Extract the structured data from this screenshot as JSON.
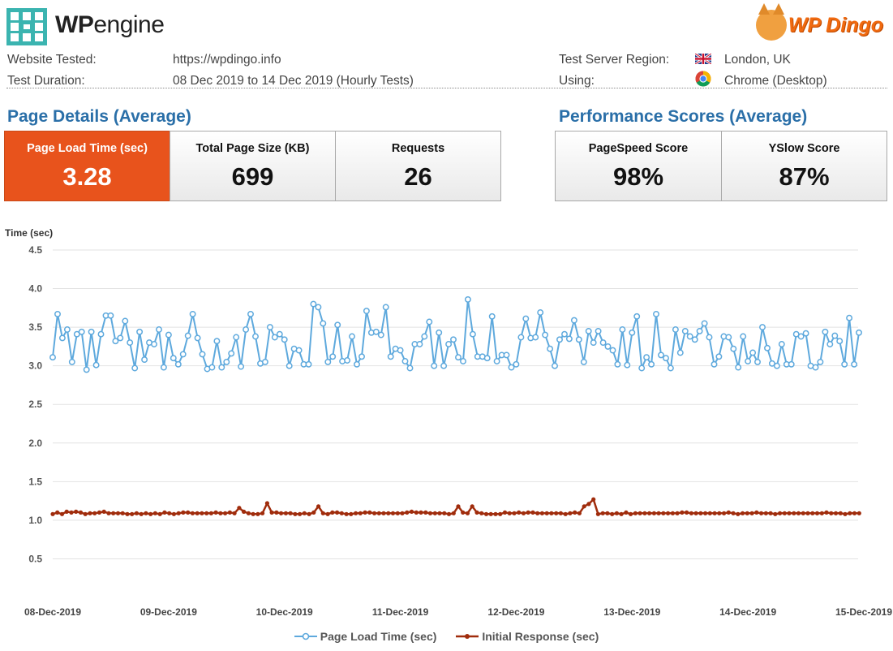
{
  "header": {
    "brand_left": "WP engine",
    "brand_left_bold": "WP",
    "brand_left_rest": "engine",
    "brand_right": "WP Dingo"
  },
  "info": {
    "website_label": "Website Tested:",
    "website_value": "https://wpdingo.info",
    "duration_label": "Test Duration:",
    "duration_value": "08 Dec 2019 to 14 Dec 2019 (Hourly Tests)",
    "region_label": "Test Server Region:",
    "region_value": "London, UK",
    "using_label": "Using:",
    "using_value": "Chrome (Desktop)"
  },
  "page_details": {
    "title": "Page Details (Average)",
    "metrics": [
      {
        "label": "Page Load Time (sec)",
        "value": "3.28"
      },
      {
        "label": "Total Page Size (KB)",
        "value": "699"
      },
      {
        "label": "Requests",
        "value": "26"
      }
    ]
  },
  "performance": {
    "title": "Performance Scores (Average)",
    "metrics": [
      {
        "label": "PageSpeed Score",
        "value": "98%"
      },
      {
        "label": "YSlow Score",
        "value": "87%"
      }
    ]
  },
  "colors": {
    "accent_orange": "#e8531c",
    "title_blue": "#2a6fa8",
    "series_load": "#5ea9dd",
    "series_response": "#a02c0c"
  },
  "chart_data": {
    "type": "line",
    "ylabel": "Time (sec)",
    "ylim": [
      0,
      4.5
    ],
    "yticks": [
      "4.5",
      "4.0",
      "3.5",
      "3.0",
      "2.5",
      "2.0",
      "1.5",
      "1.0",
      "0.5"
    ],
    "xlim": [
      0,
      7
    ],
    "x_unit": "days since 08-Dec-2019",
    "xticks": [
      "08-Dec-2019",
      "09-Dec-2019",
      "10-Dec-2019",
      "11-Dec-2019",
      "12-Dec-2019",
      "13-Dec-2019",
      "14-Dec-2019",
      "15-Dec-2019"
    ],
    "grid": true,
    "legend_position": "bottom",
    "series": [
      {
        "name": "Page Load Time (sec)",
        "color": "#5ea9dd",
        "values": [
          3.11,
          3.67,
          3.36,
          3.47,
          3.05,
          3.41,
          3.44,
          2.95,
          3.44,
          3.01,
          3.41,
          3.65,
          3.65,
          3.32,
          3.36,
          3.58,
          3.3,
          2.97,
          3.44,
          3.08,
          3.3,
          3.28,
          3.47,
          2.98,
          3.4,
          3.1,
          3.02,
          3.15,
          3.39,
          3.67,
          3.36,
          3.15,
          2.96,
          2.98,
          3.32,
          2.98,
          3.05,
          3.16,
          3.37,
          2.99,
          3.47,
          3.67,
          3.38,
          3.03,
          3.05,
          3.5,
          3.37,
          3.41,
          3.34,
          3.0,
          3.22,
          3.2,
          3.02,
          3.02,
          3.8,
          3.76,
          3.55,
          3.05,
          3.12,
          3.53,
          3.06,
          3.07,
          3.38,
          3.02,
          3.12,
          3.71,
          3.43,
          3.44,
          3.4,
          3.76,
          3.12,
          3.22,
          3.2,
          3.06,
          2.97,
          3.28,
          3.28,
          3.38,
          3.57,
          3.0,
          3.43,
          3.0,
          3.28,
          3.34,
          3.11,
          3.06,
          3.86,
          3.41,
          3.12,
          3.12,
          3.1,
          3.64,
          3.06,
          3.14,
          3.14,
          2.98,
          3.02,
          3.37,
          3.61,
          3.36,
          3.37,
          3.69,
          3.4,
          3.22,
          3.0,
          3.34,
          3.41,
          3.35,
          3.59,
          3.34,
          3.05,
          3.45,
          3.3,
          3.45,
          3.3,
          3.25,
          3.2,
          3.02,
          3.47,
          3.01,
          3.43,
          3.64,
          2.97,
          3.11,
          3.02,
          3.67,
          3.14,
          3.1,
          2.97,
          3.47,
          3.17,
          3.45,
          3.38,
          3.34,
          3.45,
          3.55,
          3.37,
          3.02,
          3.12,
          3.38,
          3.37,
          3.22,
          2.98,
          3.38,
          3.06,
          3.17,
          3.05,
          3.5,
          3.23,
          3.03,
          3.0,
          3.28,
          3.02,
          3.02,
          3.41,
          3.38,
          3.42,
          3.0,
          2.98,
          3.05,
          3.44,
          3.28,
          3.39,
          3.32,
          3.02,
          3.62,
          3.02,
          3.43
        ]
      },
      {
        "name": "Initial Response (sec)",
        "color": "#a02c0c",
        "values": [
          1.08,
          1.1,
          1.08,
          1.11,
          1.1,
          1.11,
          1.1,
          1.08,
          1.09,
          1.09,
          1.1,
          1.11,
          1.09,
          1.09,
          1.09,
          1.09,
          1.08,
          1.08,
          1.09,
          1.08,
          1.09,
          1.08,
          1.09,
          1.08,
          1.1,
          1.09,
          1.08,
          1.09,
          1.1,
          1.1,
          1.09,
          1.09,
          1.09,
          1.09,
          1.09,
          1.1,
          1.09,
          1.09,
          1.1,
          1.09,
          1.16,
          1.11,
          1.09,
          1.08,
          1.08,
          1.09,
          1.22,
          1.1,
          1.1,
          1.09,
          1.09,
          1.09,
          1.08,
          1.08,
          1.09,
          1.08,
          1.1,
          1.18,
          1.09,
          1.08,
          1.1,
          1.1,
          1.09,
          1.08,
          1.08,
          1.09,
          1.09,
          1.1,
          1.1,
          1.09,
          1.09,
          1.09,
          1.09,
          1.09,
          1.09,
          1.09,
          1.1,
          1.11,
          1.1,
          1.1,
          1.1,
          1.09,
          1.09,
          1.09,
          1.09,
          1.08,
          1.09,
          1.18,
          1.1,
          1.09,
          1.18,
          1.1,
          1.09,
          1.08,
          1.08,
          1.08,
          1.08,
          1.1,
          1.09,
          1.09,
          1.1,
          1.09,
          1.1,
          1.1,
          1.09,
          1.09,
          1.09,
          1.09,
          1.09,
          1.09,
          1.08,
          1.09,
          1.1,
          1.09,
          1.18,
          1.21,
          1.27,
          1.08,
          1.09,
          1.09,
          1.08,
          1.09,
          1.08,
          1.1,
          1.08,
          1.09,
          1.09,
          1.09,
          1.09,
          1.09,
          1.09,
          1.09,
          1.09,
          1.09,
          1.09,
          1.1,
          1.1,
          1.09,
          1.09,
          1.09,
          1.09,
          1.09,
          1.09,
          1.09,
          1.09,
          1.1,
          1.09,
          1.08,
          1.09,
          1.09,
          1.09,
          1.1,
          1.09,
          1.09,
          1.09,
          1.08,
          1.09,
          1.09,
          1.09,
          1.09,
          1.09,
          1.09,
          1.09,
          1.09,
          1.09,
          1.09,
          1.1,
          1.09,
          1.09,
          1.09,
          1.08,
          1.09,
          1.09,
          1.09
        ]
      }
    ]
  }
}
